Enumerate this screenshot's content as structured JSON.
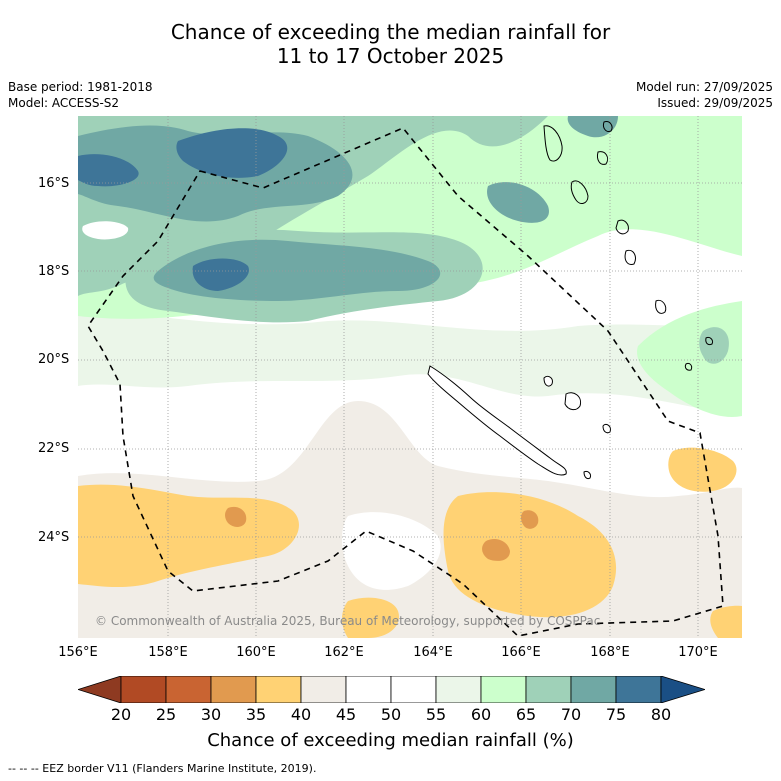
{
  "title_line1": "Chance of exceeding the median rainfall for",
  "title_line2": "11 to 17 October 2025",
  "meta_left": {
    "base_period": "Base period: 1981-2018",
    "model": "Model: ACCESS-S2"
  },
  "meta_right": {
    "model_run": "Model run: 27/09/2025",
    "issued": "Issued: 29/09/2025"
  },
  "lat_labels": [
    "16°S",
    "18°S",
    "20°S",
    "22°S",
    "24°S"
  ],
  "lon_labels": [
    "156°E",
    "158°E",
    "160°E",
    "162°E",
    "164°E",
    "166°E",
    "168°E",
    "170°E"
  ],
  "copyright": "© Commonwealth of Australia 2025, Bureau of Meteorology, supported by COSPPac",
  "colorbar": {
    "ticks": [
      "20",
      "25",
      "30",
      "35",
      "40",
      "45",
      "50",
      "55",
      "60",
      "65",
      "70",
      "75",
      "80"
    ],
    "colors": [
      "#8e3a21",
      "#b14a24",
      "#c96432",
      "#e19a4f",
      "#ffd274",
      "#f1ede7",
      "#ffffff",
      "#ffffff",
      "#ebf6e9",
      "#ccffcc",
      "#9fd1b8",
      "#70a8a4",
      "#3e7598",
      "#1a4f85"
    ],
    "title": "Chance of exceeding median rainfall (%)"
  },
  "footnote": "--  --  -- EEZ border V11 (Flanders Marine Institute, 2019)."
}
